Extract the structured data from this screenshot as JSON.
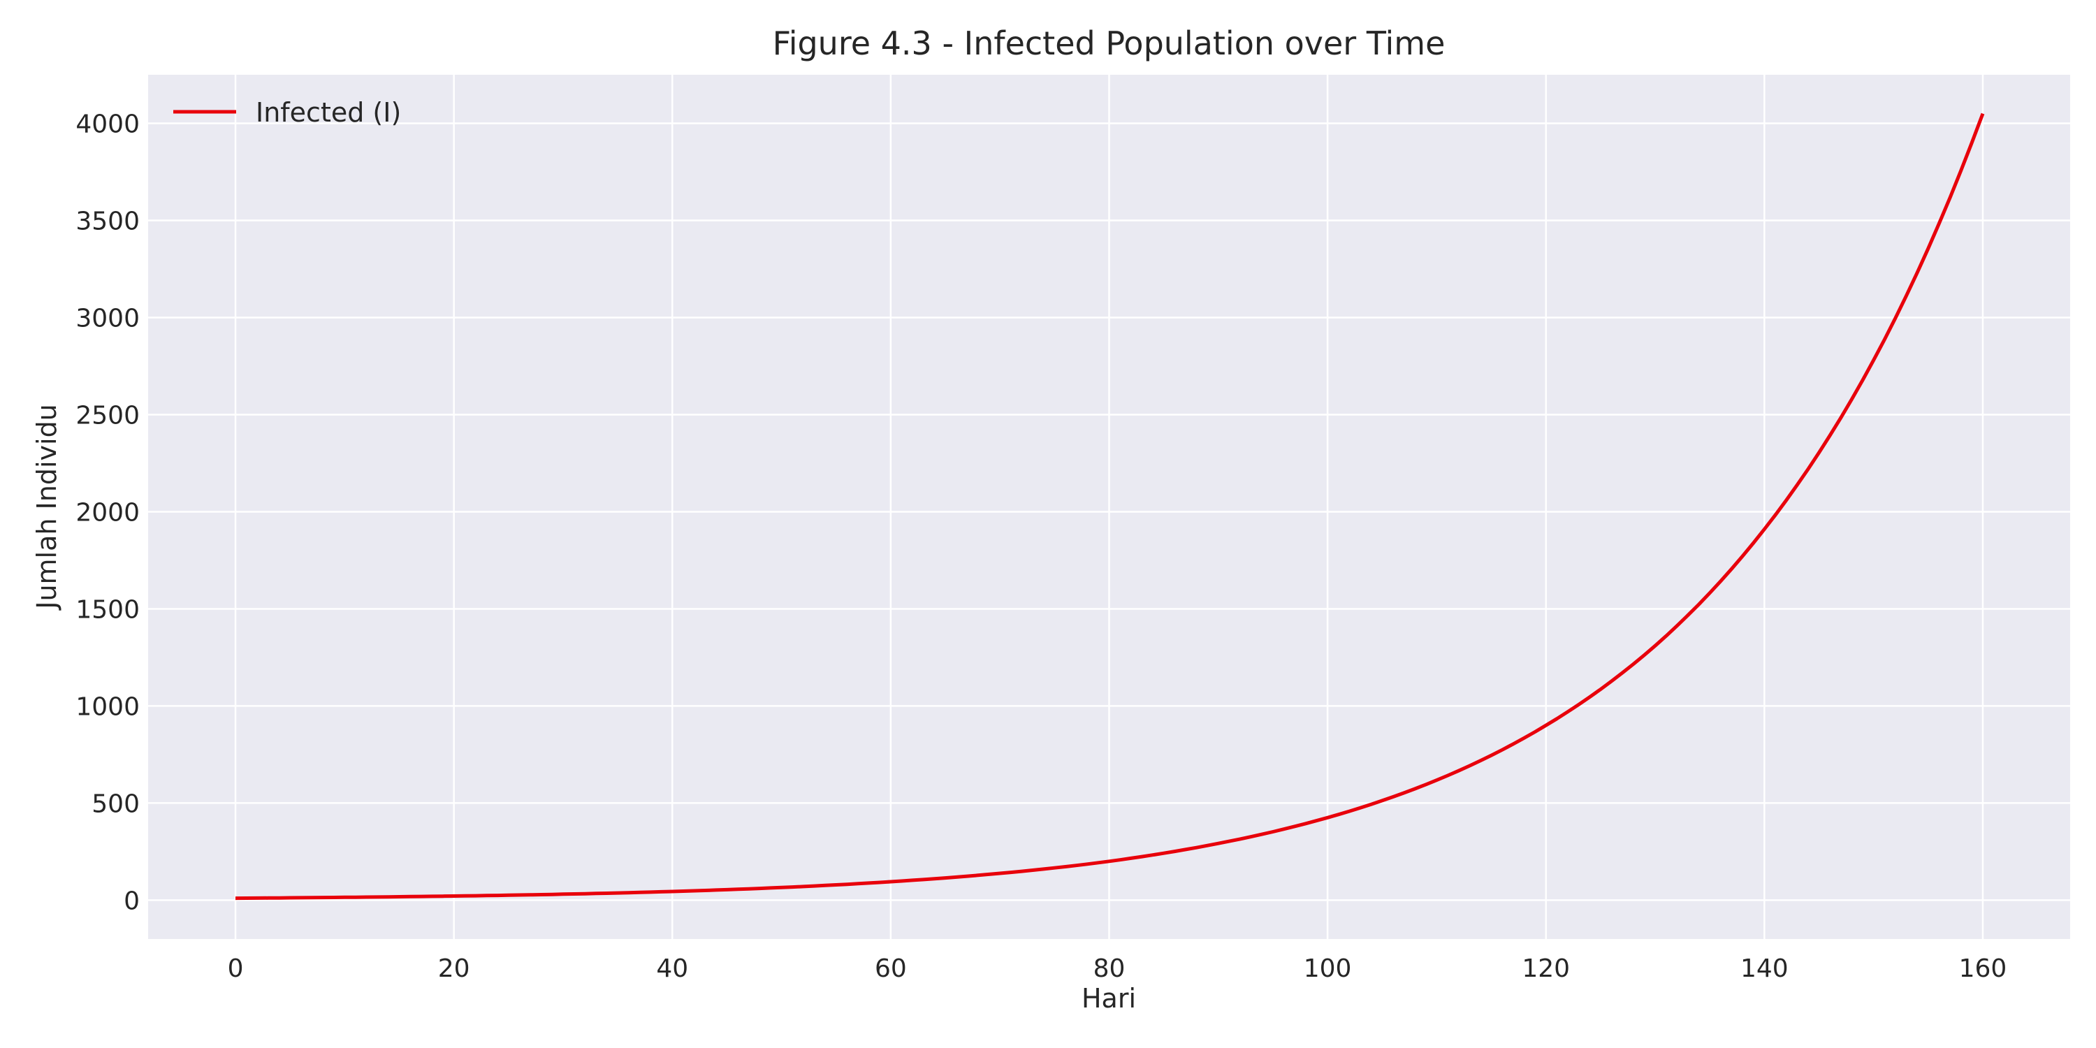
{
  "chart_data": {
    "type": "line",
    "title": "Figure 4.3 - Infected Population over Time",
    "xlabel": "Hari",
    "ylabel": "Jumlah Individu",
    "xlim": [
      -8,
      168
    ],
    "ylim": [
      -200,
      4250
    ],
    "xticks": [
      0,
      20,
      40,
      60,
      80,
      100,
      120,
      140,
      160
    ],
    "yticks": [
      0,
      500,
      1000,
      1500,
      2000,
      2500,
      3000,
      3500,
      4000
    ],
    "grid": true,
    "legend_position": "top-left",
    "series": [
      {
        "name": "Infected (I)",
        "color": "#e8000b",
        "x": [
          0,
          10,
          20,
          30,
          40,
          50,
          60,
          70,
          80,
          90,
          100,
          110,
          120,
          130,
          140,
          150,
          160
        ],
        "y": [
          10,
          14.6,
          21.2,
          30.8,
          44.8,
          65.2,
          95,
          138,
          200,
          292,
          425,
          618,
          900,
          1310,
          1910,
          2780,
          4050
        ]
      }
    ]
  },
  "colors": {
    "plot_background": "#eaeaf2",
    "grid": "#ffffff",
    "text": "#262626"
  }
}
